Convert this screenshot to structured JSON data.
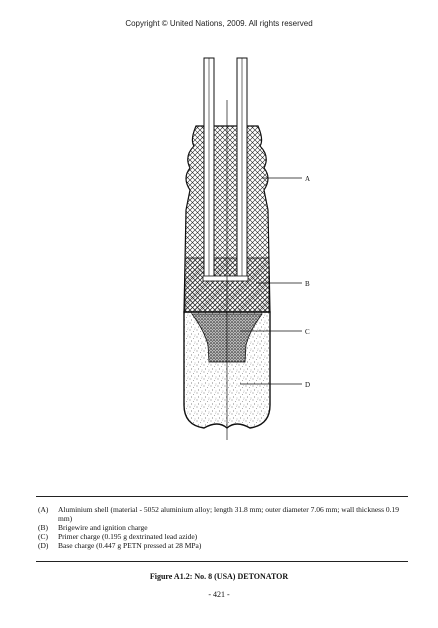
{
  "header": {
    "copyright": "Copyright © United Nations, 2009. All rights reserved"
  },
  "figure": {
    "callouts": [
      {
        "key": "A"
      },
      {
        "key": "B"
      },
      {
        "key": "C"
      },
      {
        "key": "D"
      }
    ]
  },
  "legend": [
    {
      "key": "(A)",
      "text": "Aluminium shell (material - 5052 aluminium alloy; length 31.8 mm;  outer diameter 7.06 mm; wall thickness 0.19 mm)"
    },
    {
      "key": "(B)",
      "text": "Brigewire and ignition charge"
    },
    {
      "key": "(C)",
      "text": "Primer charge (0.195 g dextrinated lead azide)"
    },
    {
      "key": "(D)",
      "text": "Base charge (0.447 g PETN pressed at 28 MPa)"
    }
  ],
  "caption": "Figure A1.2:  No. 8 (USA) DETONATOR",
  "page_number": "- 421 -"
}
